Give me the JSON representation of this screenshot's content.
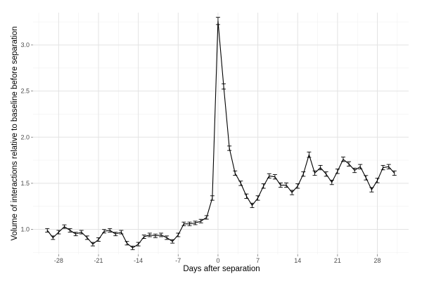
{
  "chart_data": {
    "type": "line",
    "xlabel": "Days after separation",
    "ylabel": "Volume of interactions relative to baseline before separation",
    "xlim": [
      -32.5,
      33.5
    ],
    "ylim": [
      0.73,
      3.35
    ],
    "x_ticks": [
      -28,
      -21,
      -14,
      -7,
      0,
      7,
      14,
      21,
      28
    ],
    "y_ticks": [
      1.0,
      1.5,
      2.0,
      2.5,
      3.0
    ],
    "x_tick_labels": [
      "-28",
      "-21",
      "-14",
      "-7",
      "0",
      "7",
      "14",
      "21",
      "28"
    ],
    "y_tick_labels": [
      "1.0",
      "1.5",
      "2.0",
      "2.5",
      "3.0"
    ],
    "grid": true,
    "error_bars": true,
    "series": [
      {
        "x": [
          -30,
          -29,
          -28,
          -27,
          -26,
          -25,
          -24,
          -23,
          -22,
          -21,
          -20,
          -19,
          -18,
          -17,
          -16,
          -15,
          -14,
          -13,
          -12,
          -11,
          -10,
          -9,
          -8,
          -7,
          -6,
          -5,
          -4,
          -3,
          -2,
          -1,
          0,
          1,
          2,
          3,
          4,
          5,
          6,
          7,
          8,
          9,
          10,
          11,
          12,
          13,
          14,
          15,
          16,
          17,
          18,
          19,
          20,
          21,
          22,
          23,
          24,
          25,
          26,
          27,
          28,
          29,
          30,
          31
        ],
        "y": [
          0.99,
          0.91,
          0.97,
          1.03,
          0.99,
          0.95,
          0.97,
          0.91,
          0.84,
          0.89,
          0.98,
          0.99,
          0.95,
          0.97,
          0.85,
          0.8,
          0.84,
          0.92,
          0.94,
          0.93,
          0.94,
          0.91,
          0.87,
          0.94,
          1.06,
          1.06,
          1.07,
          1.09,
          1.13,
          1.34,
          3.26,
          2.55,
          1.88,
          1.61,
          1.5,
          1.36,
          1.26,
          1.34,
          1.47,
          1.58,
          1.57,
          1.48,
          1.48,
          1.4,
          1.47,
          1.6,
          1.81,
          1.61,
          1.67,
          1.6,
          1.51,
          1.63,
          1.76,
          1.71,
          1.64,
          1.68,
          1.56,
          1.43,
          1.53,
          1.67,
          1.68,
          1.61
        ],
        "err": [
          0.01,
          0.01,
          0.01,
          0.01,
          0.01,
          0.01,
          0.01,
          0.01,
          0.01,
          0.01,
          0.01,
          0.01,
          0.01,
          0.01,
          0.01,
          0.01,
          0.01,
          0.01,
          0.01,
          0.01,
          0.01,
          0.01,
          0.01,
          0.01,
          0.01,
          0.01,
          0.01,
          0.01,
          0.01,
          0.015,
          0.03,
          0.02,
          0.015,
          0.015,
          0.015,
          0.015,
          0.015,
          0.015,
          0.015,
          0.015,
          0.015,
          0.015,
          0.015,
          0.015,
          0.015,
          0.015,
          0.02,
          0.015,
          0.015,
          0.015,
          0.015,
          0.015,
          0.015,
          0.015,
          0.015,
          0.015,
          0.015,
          0.015,
          0.015,
          0.015,
          0.015,
          0.015
        ]
      }
    ]
  }
}
